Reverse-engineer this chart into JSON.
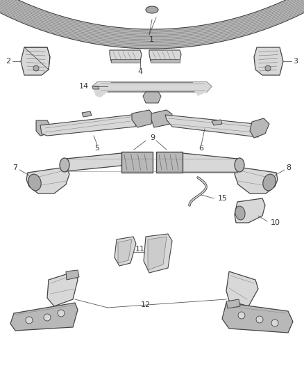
{
  "bg_color": "#ffffff",
  "fig_width": 4.38,
  "fig_height": 5.33,
  "dpi": 100,
  "line_color": "#444444",
  "text_color": "#333333",
  "fill_light": "#d8d8d8",
  "fill_mid": "#b8b8b8",
  "fill_dark": "#888888"
}
